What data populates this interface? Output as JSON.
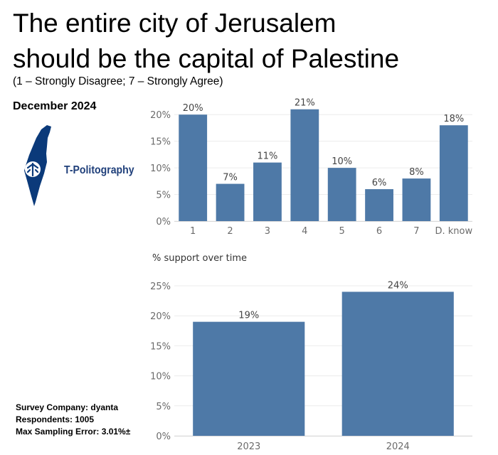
{
  "title_line1": "The entire city of Jerusalem",
  "title_line2": "should be the capital of Palestine",
  "subtitle": "(1 – Strongly Disagree; 7 – Strongly Agree)",
  "date": "December 2024",
  "logo": {
    "text": "T-Politography",
    "icon": "israel-map-logo-icon",
    "color": "#1f3f7a"
  },
  "meta": {
    "company": "Survey Company: dyanta",
    "respondents": "Respondents: 1005",
    "error": "Max Sampling Error: 3.01%±"
  },
  "chart_data": [
    {
      "type": "bar",
      "title": "",
      "categories": [
        "1",
        "2",
        "3",
        "4",
        "5",
        "6",
        "7",
        "D. know"
      ],
      "values": [
        20,
        7,
        11,
        21,
        10,
        6,
        8,
        18
      ],
      "labels": [
        "20%",
        "7%",
        "11%",
        "21%",
        "10%",
        "6%",
        "8%",
        "18%"
      ],
      "yticks": [
        0,
        5,
        10,
        15,
        20
      ],
      "ytick_labels": [
        "0%",
        "5%",
        "10%",
        "15%",
        "20%"
      ],
      "ylim": [
        0,
        21.5
      ],
      "grid": true,
      "color": "#4e79a7"
    },
    {
      "type": "bar",
      "title": "% support over time",
      "categories": [
        "2023",
        "2024"
      ],
      "values": [
        19,
        24
      ],
      "labels": [
        "19%",
        "24%"
      ],
      "yticks": [
        0,
        5,
        10,
        15,
        20,
        25
      ],
      "ytick_labels": [
        "0%",
        "5%",
        "10%",
        "15%",
        "20%",
        "25%"
      ],
      "ylim": [
        0,
        25
      ],
      "grid": true,
      "color": "#4e79a7"
    }
  ]
}
